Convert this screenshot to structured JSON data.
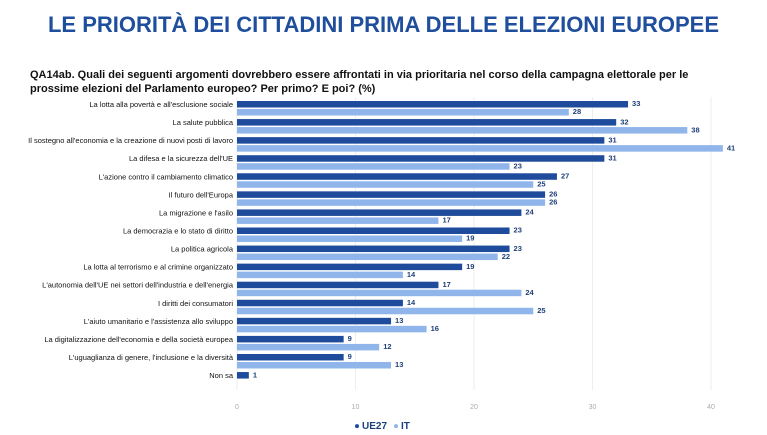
{
  "chart_data": {
    "type": "bar",
    "orientation": "horizontal",
    "title": "LE PRIORITÀ DEI CITTADINI PRIMA DELLE ELEZIONI EUROPEE",
    "subtitle": "QA14ab. Quali dei seguenti argomenti dovrebbero essere affrontati in via prioritaria nel corso della campagna elettorale per le prossime elezioni del Parlamento europeo? Per primo? E poi? (%)",
    "categories": [
      "La lotta alla povertà e all'esclusione sociale",
      "La salute pubblica",
      "Il sostegno all'economia e la creazione di nuovi posti di lavoro",
      "La difesa e la sicurezza dell'UE",
      "L'azione contro il cambiamento climatico",
      "Il futuro dell'Europa",
      "La migrazione e l'asilo",
      "La democrazia e lo stato di diritto",
      "La politica agricola",
      "La lotta al terrorismo e al crimine organizzato",
      "L'autonomia dell'UE nei settori dell'industria e dell'energia",
      "I diritti dei consumatori",
      "L'aiuto umanitario e l'assistenza allo sviluppo",
      "La digitalizzazione dell'economia e della società europea",
      "L'uguaglianza di genere, l'inclusione e la diversità",
      "Non sa"
    ],
    "series": [
      {
        "name": "UE27",
        "color": "#1e4b9b",
        "values": [
          33,
          32,
          31,
          31,
          27,
          26,
          24,
          23,
          23,
          19,
          17,
          14,
          13,
          9,
          9,
          1
        ]
      },
      {
        "name": "IT",
        "color": "#8fb5ea",
        "values": [
          28,
          38,
          41,
          23,
          25,
          26,
          17,
          19,
          22,
          14,
          24,
          25,
          16,
          12,
          13,
          null
        ]
      }
    ],
    "xlim": [
      0,
      40
    ],
    "xticks": [
      0,
      10,
      20,
      30,
      40
    ],
    "grid": true
  }
}
